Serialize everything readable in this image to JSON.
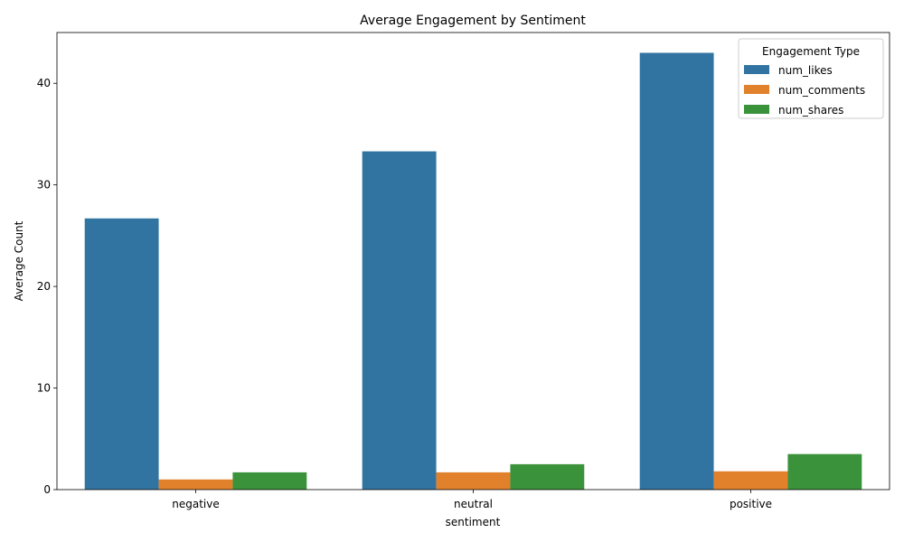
{
  "chart_data": {
    "type": "bar",
    "title": "Average Engagement by Sentiment",
    "xlabel": "sentiment",
    "ylabel": "Average Count",
    "categories": [
      "negative",
      "neutral",
      "positive"
    ],
    "series": [
      {
        "name": "num_likes",
        "color": "#3274a1",
        "values": [
          26.7,
          33.3,
          43.0
        ]
      },
      {
        "name": "num_comments",
        "color": "#e1812c",
        "values": [
          1.0,
          1.7,
          1.8
        ]
      },
      {
        "name": "num_shares",
        "color": "#3a923a",
        "values": [
          1.7,
          2.5,
          3.5
        ]
      }
    ],
    "ylim": [
      0,
      45
    ],
    "yticks": [
      0,
      10,
      20,
      30,
      40
    ],
    "legend": {
      "title": "Engagement Type",
      "placement": "top-right"
    },
    "grid": false
  }
}
